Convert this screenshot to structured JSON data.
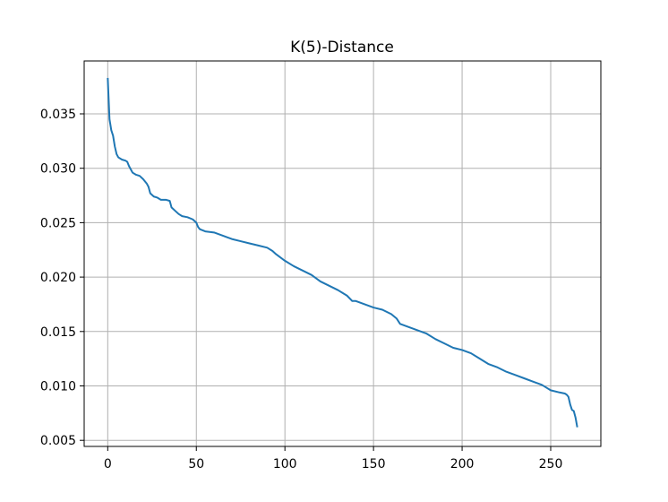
{
  "chart_data": {
    "type": "line",
    "title": "K(5)-Distance",
    "xlabel": "",
    "ylabel": "",
    "xlim": [
      -13.3,
      278.3
    ],
    "ylim": [
      0.00444,
      0.03986
    ],
    "grid": true,
    "xticks": [
      0,
      50,
      100,
      150,
      200,
      250
    ],
    "xtick_labels": [
      "0",
      "50",
      "100",
      "150",
      "200",
      "250"
    ],
    "yticks": [
      0.005,
      0.01,
      0.015,
      0.02,
      0.025,
      0.03,
      0.035
    ],
    "ytick_labels": [
      "0.005",
      "0.010",
      "0.015",
      "0.020",
      "0.025",
      "0.030",
      "0.035"
    ],
    "line_color": "#1f77b4",
    "series": [
      {
        "x": [
          0,
          1,
          2,
          3,
          4,
          5,
          6,
          8,
          10,
          11,
          12,
          14,
          16,
          18,
          20,
          22,
          23,
          24,
          26,
          28,
          30,
          33,
          35,
          36,
          38,
          40,
          42,
          45,
          48,
          50,
          51,
          52,
          55,
          60,
          65,
          70,
          75,
          80,
          85,
          90,
          93,
          95,
          100,
          105,
          110,
          115,
          120,
          125,
          130,
          135,
          138,
          140,
          145,
          150,
          155,
          160,
          163,
          165,
          170,
          175,
          180,
          185,
          190,
          195,
          200,
          205,
          210,
          215,
          220,
          225,
          230,
          235,
          240,
          245,
          248,
          250,
          255,
          258,
          259,
          260,
          261,
          262,
          263,
          264,
          265
        ],
        "y": [
          0.0383,
          0.0345,
          0.0335,
          0.033,
          0.032,
          0.0313,
          0.031,
          0.0308,
          0.0307,
          0.0306,
          0.0302,
          0.0296,
          0.0294,
          0.0293,
          0.029,
          0.0286,
          0.0283,
          0.0277,
          0.0274,
          0.0273,
          0.0271,
          0.0271,
          0.027,
          0.0264,
          0.0261,
          0.0258,
          0.0256,
          0.0255,
          0.0253,
          0.025,
          0.0246,
          0.0244,
          0.0242,
          0.0241,
          0.0238,
          0.0235,
          0.0233,
          0.0231,
          0.0229,
          0.0227,
          0.0224,
          0.0221,
          0.0215,
          0.021,
          0.0206,
          0.0202,
          0.0196,
          0.0192,
          0.0188,
          0.0183,
          0.0178,
          0.0178,
          0.0175,
          0.0172,
          0.017,
          0.0166,
          0.0162,
          0.0157,
          0.0154,
          0.0151,
          0.0148,
          0.0143,
          0.0139,
          0.0135,
          0.0133,
          0.013,
          0.0125,
          0.012,
          0.0117,
          0.0113,
          0.011,
          0.0107,
          0.0104,
          0.0101,
          0.0098,
          0.0096,
          0.0094,
          0.0093,
          0.0092,
          0.009,
          0.0083,
          0.0078,
          0.0077,
          0.0071,
          0.0062
        ]
      }
    ]
  }
}
